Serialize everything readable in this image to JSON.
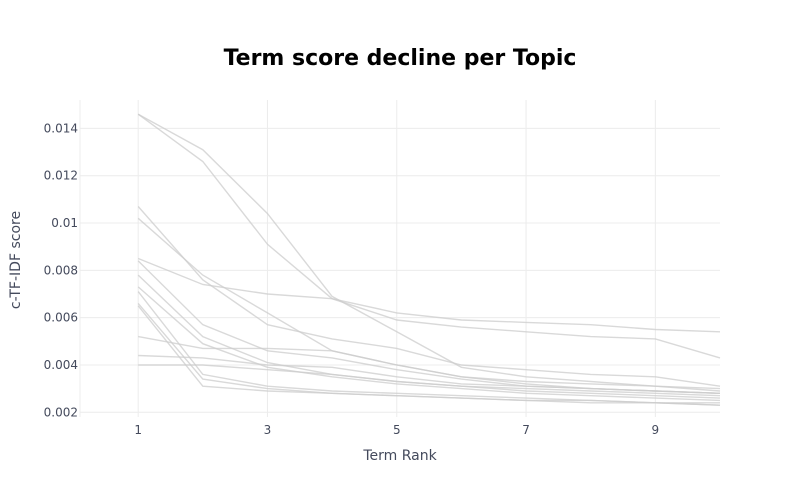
{
  "chart_data": {
    "type": "line",
    "title": "Term score decline per Topic",
    "xlabel": "Term Rank",
    "ylabel": "c-TF-IDF score",
    "xlim": [
      0.1,
      10
    ],
    "ylim": [
      0.0018,
      0.0152
    ],
    "x_ticks": [
      1,
      3,
      5,
      7,
      9
    ],
    "y_ticks": [
      0.002,
      0.004,
      0.006,
      0.008,
      0.01,
      0.012,
      0.014
    ],
    "x_tick_labels": [
      "1",
      "3",
      "5",
      "7",
      "9"
    ],
    "y_tick_labels": [
      "0.002",
      "0.004",
      "0.006",
      "0.008",
      "0.01",
      "0.012",
      "0.014"
    ],
    "grid": true,
    "legend": "none",
    "line_color": "#cccccc",
    "x": [
      1,
      2,
      3,
      4,
      5,
      6,
      7,
      8,
      9,
      10
    ],
    "series": [
      {
        "values": [
          0.0146,
          0.0131,
          0.0104,
          0.0069,
          0.0054,
          0.0039,
          0.0035,
          0.0033,
          0.0031,
          0.0029
        ]
      },
      {
        "values": [
          0.0146,
          0.0126,
          0.0091,
          0.0068,
          0.0059,
          0.0056,
          0.0054,
          0.0052,
          0.0051,
          0.0043
        ]
      },
      {
        "values": [
          0.0107,
          0.0076,
          0.0057,
          0.0051,
          0.0047,
          0.004,
          0.0038,
          0.0036,
          0.0035,
          0.0031
        ]
      },
      {
        "values": [
          0.0102,
          0.0078,
          0.0062,
          0.0046,
          0.004,
          0.0035,
          0.0032,
          0.003,
          0.0029,
          0.0028
        ]
      },
      {
        "values": [
          0.0085,
          0.0074,
          0.007,
          0.0068,
          0.0062,
          0.0059,
          0.0058,
          0.0057,
          0.0055,
          0.0054
        ]
      },
      {
        "values": [
          0.0084,
          0.0057,
          0.0046,
          0.0043,
          0.0038,
          0.0034,
          0.0031,
          0.003,
          0.0029,
          0.0028
        ]
      },
      {
        "values": [
          0.0078,
          0.0052,
          0.0041,
          0.0036,
          0.0033,
          0.0031,
          0.0029,
          0.0028,
          0.0027,
          0.0026
        ]
      },
      {
        "values": [
          0.0073,
          0.0049,
          0.0039,
          0.0035,
          0.0032,
          0.003,
          0.0028,
          0.0027,
          0.0026,
          0.0025
        ]
      },
      {
        "values": [
          0.0071,
          0.0036,
          0.0031,
          0.0029,
          0.0028,
          0.0027,
          0.0026,
          0.0025,
          0.0024,
          0.0023
        ]
      },
      {
        "values": [
          0.0066,
          0.0034,
          0.003,
          0.0028,
          0.0027,
          0.0026,
          0.0025,
          0.0025,
          0.0024,
          0.0023
        ]
      },
      {
        "values": [
          0.0065,
          0.0031,
          0.0029,
          0.0028,
          0.0027,
          0.0026,
          0.0025,
          0.0024,
          0.0024,
          0.0024
        ]
      },
      {
        "values": [
          0.0052,
          0.0047,
          0.0047,
          0.0046,
          0.004,
          0.0035,
          0.0033,
          0.0032,
          0.0031,
          0.003
        ]
      },
      {
        "values": [
          0.0044,
          0.0043,
          0.004,
          0.0039,
          0.0035,
          0.0032,
          0.0031,
          0.003,
          0.0029,
          0.0028
        ]
      },
      {
        "values": [
          0.004,
          0.004,
          0.0038,
          0.0036,
          0.0033,
          0.0031,
          0.003,
          0.0029,
          0.0028,
          0.0027
        ]
      }
    ]
  }
}
